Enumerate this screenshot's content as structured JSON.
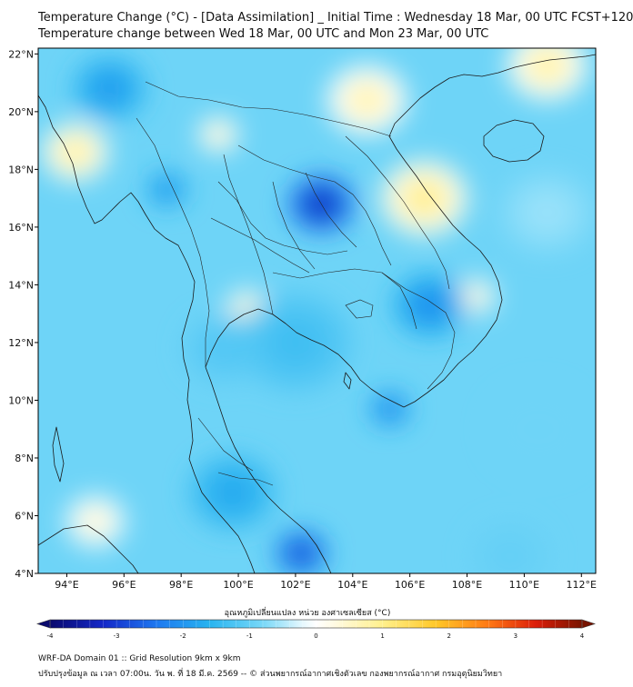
{
  "header": {
    "title_line1": "Temperature Change (°C) - [Data Assimilation] _ Initial Time : Wednesday 18 Mar, 00 UTC FCST+120",
    "title_line2": "Temperature change between Wed 18 Mar, 00 UTC and Mon 23 Mar, 00 UTC"
  },
  "map": {
    "lat_labels": [
      "22°N",
      "20°N",
      "18°N",
      "16°N",
      "14°N",
      "12°N",
      "10°N",
      "8°N",
      "6°N",
      "4°N"
    ],
    "lat_values": [
      22,
      20,
      18,
      16,
      14,
      12,
      10,
      8,
      6,
      4
    ],
    "lon_labels": [
      "94°E",
      "96°E",
      "98°E",
      "100°E",
      "102°E",
      "104°E",
      "106°E",
      "108°E",
      "110°E",
      "112°E"
    ],
    "lon_values": [
      94,
      96,
      98,
      100,
      102,
      104,
      106,
      108,
      110,
      112
    ],
    "extent": {
      "lon_min": 93,
      "lon_max": 112.5,
      "lat_min": 4,
      "lat_max": 22.2
    },
    "anomalies": [
      {
        "lon": 102.9,
        "lat": 16.8,
        "value": -3.4,
        "spread": 1.0
      },
      {
        "lon": 102.2,
        "lat": 4.7,
        "value": -3.0,
        "spread": 0.8
      },
      {
        "lon": 105.3,
        "lat": 9.7,
        "value": -2.4,
        "spread": 0.6
      },
      {
        "lon": 106.7,
        "lat": 13.3,
        "value": -2.2,
        "spread": 1.1
      },
      {
        "lon": 97.5,
        "lat": 17.3,
        "value": -2.2,
        "spread": 0.6
      },
      {
        "lon": 95.5,
        "lat": 20.8,
        "value": -2.0,
        "spread": 1.1
      },
      {
        "lon": 99.8,
        "lat": 6.8,
        "value": -1.8,
        "spread": 1.3
      },
      {
        "lon": 102.0,
        "lat": 12.0,
        "value": -1.4,
        "spread": 1.7
      },
      {
        "lon": 99.5,
        "lat": 11.8,
        "value": -1.2,
        "spread": 1.2
      },
      {
        "lon": 94.3,
        "lat": 18.6,
        "value": 1.0,
        "spread": 1.0
      },
      {
        "lon": 106.5,
        "lat": 17.0,
        "value": 1.1,
        "spread": 1.3
      },
      {
        "lon": 104.5,
        "lat": 20.4,
        "value": 0.8,
        "spread": 1.2
      },
      {
        "lon": 110.8,
        "lat": 21.6,
        "value": 0.9,
        "spread": 1.2
      },
      {
        "lon": 108.3,
        "lat": 13.6,
        "value": 0.6,
        "spread": 0.6
      },
      {
        "lon": 99.3,
        "lat": 19.2,
        "value": 0.7,
        "spread": 0.6
      },
      {
        "lon": 100.3,
        "lat": 13.2,
        "value": 0.7,
        "spread": 0.6
      },
      {
        "lon": 95.0,
        "lat": 5.8,
        "value": 0.5,
        "spread": 0.9
      },
      {
        "lon": 110.5,
        "lat": 9.0,
        "value": -0.9,
        "spread": 1.5
      },
      {
        "lon": 110.8,
        "lat": 16.5,
        "value": -0.6,
        "spread": 1.4
      },
      {
        "lon": 109.5,
        "lat": 4.6,
        "value": -1.0,
        "spread": 1.2
      }
    ],
    "baseline": -0.9
  },
  "colorbar": {
    "label": "อุณหภูมิเปลี่ยนแปลง หน่วย องศาเซลเซียส (°C)",
    "min": -4,
    "max": 4,
    "tick_values": [
      -4,
      -3,
      -2,
      -1,
      0,
      1,
      2,
      3,
      4
    ],
    "tick_labels": [
      "-4",
      "-3",
      "-2",
      "-1",
      "0",
      "1",
      "2",
      "3",
      "4"
    ],
    "stops": [
      {
        "value": -4.0,
        "color": "#0a0a6e"
      },
      {
        "value": -3.2,
        "color": "#1428c8"
      },
      {
        "value": -2.4,
        "color": "#1e78f0"
      },
      {
        "value": -1.6,
        "color": "#28b4f0"
      },
      {
        "value": -0.8,
        "color": "#78d8f8"
      },
      {
        "value": -0.2,
        "color": "#e6f8fe"
      },
      {
        "value": 0.0,
        "color": "#ffffff"
      },
      {
        "value": 0.3,
        "color": "#fffae0"
      },
      {
        "value": 1.0,
        "color": "#fff08c"
      },
      {
        "value": 1.8,
        "color": "#ffc828"
      },
      {
        "value": 2.6,
        "color": "#ff7814"
      },
      {
        "value": 3.3,
        "color": "#dc1e0a"
      },
      {
        "value": 4.0,
        "color": "#781400"
      }
    ]
  },
  "footer": {
    "line1": "WRF-DA Domain 01 :: Grid Resolution 9km x 9km",
    "line2": "ปรับปรุงข้อมูล ณ เวลา 07:00น. วัน พ. ที่ 18 มี.ค. 2569 -- © ส่วนพยากรณ์อากาศเชิงตัวเลข กองพยากรณ์อากาศ กรมอุตุนิยมวิทยา"
  }
}
